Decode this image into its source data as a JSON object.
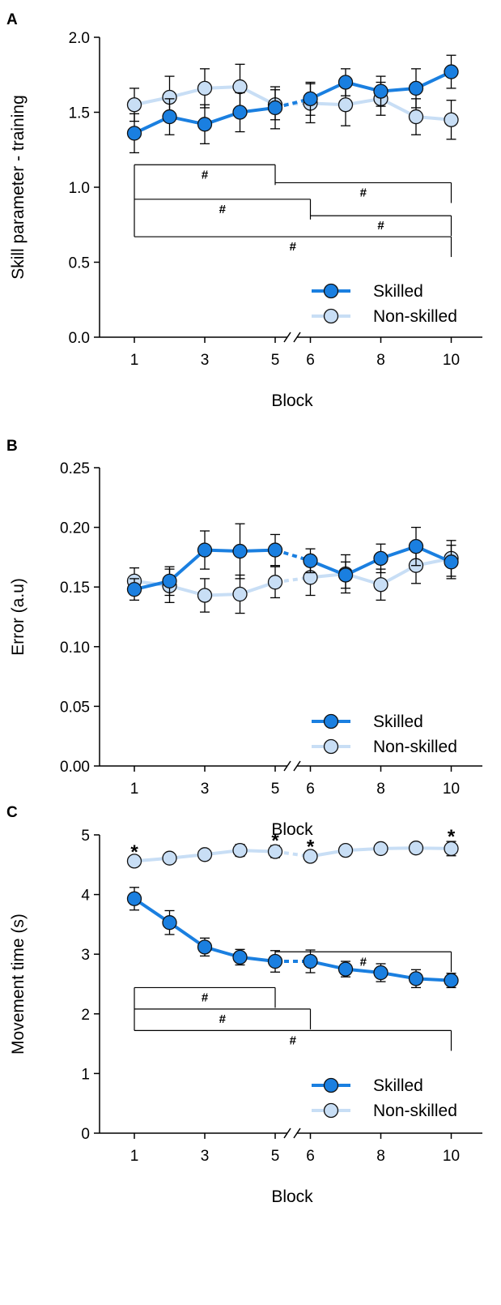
{
  "colors": {
    "skilled": "#1a7fe0",
    "non_skilled": "#c8def5",
    "axis": "#000000"
  },
  "chart_data": [
    {
      "panel_label": "A",
      "type": "line",
      "title": "",
      "xlabel": "Block",
      "ylabel": "Skill parameter - training",
      "x": [
        1,
        2,
        3,
        4,
        5,
        6,
        7,
        8,
        9,
        10
      ],
      "x_ticks": [
        1,
        3,
        5,
        6,
        8,
        10
      ],
      "x_break_between": [
        5,
        6
      ],
      "ylim": [
        0,
        2.0
      ],
      "y_ticks": [
        "0.0",
        "0.5",
        "1.0",
        "1.5",
        "2.0"
      ],
      "grid": false,
      "legend_position": "bottom-right",
      "series": [
        {
          "name": "Skilled",
          "values": [
            1.36,
            1.47,
            1.42,
            1.5,
            1.53,
            1.59,
            1.7,
            1.64,
            1.66,
            1.77
          ],
          "error": [
            0.13,
            0.12,
            0.13,
            0.13,
            0.14,
            0.11,
            0.09,
            0.1,
            0.13,
            0.11
          ]
        },
        {
          "name": "Non-skilled",
          "values": [
            1.55,
            1.6,
            1.66,
            1.67,
            1.55,
            1.56,
            1.55,
            1.59,
            1.47,
            1.45
          ],
          "error": [
            0.11,
            0.14,
            0.13,
            0.15,
            0.1,
            0.13,
            0.14,
            0.11,
            0.12,
            0.13
          ]
        }
      ],
      "comparisons": [
        {
          "from": 1,
          "to": 5,
          "y": 1.15,
          "label": "#"
        },
        {
          "from": 5,
          "to": 10,
          "y": 1.03,
          "label": "#"
        },
        {
          "from": 1,
          "to": 6,
          "y": 0.92,
          "label": "#"
        },
        {
          "from": 6,
          "to": 10,
          "y": 0.81,
          "label": "#"
        },
        {
          "from": 1,
          "to": 10,
          "y": 0.67,
          "label": "#"
        }
      ],
      "stars": []
    },
    {
      "panel_label": "B",
      "type": "line",
      "title": "",
      "xlabel": "Block",
      "ylabel": "Error (a.u)",
      "x": [
        1,
        2,
        3,
        4,
        5,
        6,
        7,
        8,
        9,
        10
      ],
      "x_ticks": [
        1,
        3,
        5,
        6,
        8,
        10
      ],
      "x_break_between": [
        5,
        6
      ],
      "ylim": [
        0,
        0.25
      ],
      "y_ticks": [
        "0.00",
        "0.05",
        "0.10",
        "0.15",
        "0.20",
        "0.25"
      ],
      "grid": false,
      "legend_position": "bottom-right",
      "series": [
        {
          "name": "Skilled",
          "values": [
            0.148,
            0.155,
            0.181,
            0.18,
            0.181,
            0.172,
            0.16,
            0.174,
            0.184,
            0.171
          ],
          "error": [
            0.009,
            0.012,
            0.016,
            0.023,
            0.013,
            0.01,
            0.011,
            0.012,
            0.016,
            0.014
          ]
        },
        {
          "name": "Non-skilled",
          "values": [
            0.155,
            0.151,
            0.143,
            0.144,
            0.154,
            0.158,
            0.161,
            0.152,
            0.168,
            0.174
          ],
          "error": [
            0.011,
            0.014,
            0.014,
            0.016,
            0.013,
            0.015,
            0.016,
            0.013,
            0.015,
            0.015
          ]
        }
      ],
      "comparisons": [],
      "stars": []
    },
    {
      "panel_label": "C",
      "type": "line",
      "title": "",
      "xlabel": "Block",
      "ylabel": "Movement time (s)",
      "x": [
        1,
        2,
        3,
        4,
        5,
        6,
        7,
        8,
        9,
        10
      ],
      "x_ticks": [
        1,
        3,
        5,
        6,
        8,
        10
      ],
      "x_break_between": [
        5,
        6
      ],
      "ylim": [
        0,
        5
      ],
      "y_ticks": [
        "0",
        "1",
        "2",
        "3",
        "4",
        "5"
      ],
      "grid": false,
      "legend_position": "bottom-right",
      "series": [
        {
          "name": "Skilled",
          "values": [
            3.93,
            3.53,
            3.12,
            2.95,
            2.88,
            2.88,
            2.75,
            2.69,
            2.59,
            2.56
          ],
          "error": [
            0.19,
            0.2,
            0.15,
            0.13,
            0.18,
            0.19,
            0.13,
            0.15,
            0.15,
            0.12
          ]
        },
        {
          "name": "Non-skilled",
          "values": [
            4.56,
            4.61,
            4.67,
            4.74,
            4.72,
            4.64,
            4.74,
            4.77,
            4.78,
            4.77
          ],
          "error": [
            0.07,
            0.06,
            0.08,
            0.1,
            0.1,
            0.08,
            0.07,
            0.07,
            0.08,
            0.12
          ]
        }
      ],
      "comparisons": [
        {
          "from": 5,
          "to": 10,
          "y": 3.04,
          "label": "#"
        },
        {
          "from": 1,
          "to": 5,
          "y": 2.44,
          "label": "#"
        },
        {
          "from": 1,
          "to": 6,
          "y": 2.08,
          "label": "#"
        },
        {
          "from": 1,
          "to": 10,
          "y": 1.72,
          "label": "#"
        }
      ],
      "stars": [
        {
          "x": 1,
          "label": "*"
        },
        {
          "x": 5,
          "label": "*"
        },
        {
          "x": 6,
          "label": "*"
        },
        {
          "x": 10,
          "label": "*"
        }
      ]
    }
  ]
}
